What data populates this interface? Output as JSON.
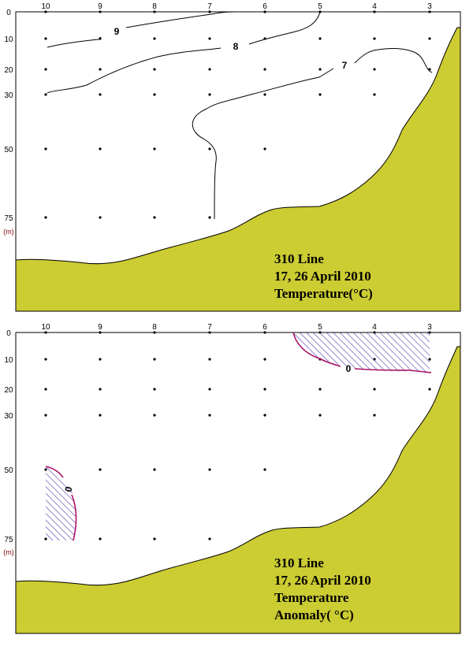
{
  "colors": {
    "land": "#cccc33",
    "hatch": "#5533aa",
    "anomaly_line": "#aa1166",
    "contour": "#000000",
    "frame": "#000000"
  },
  "chart_data": [
    {
      "type": "contour",
      "title_lines": [
        "310 Line",
        "17, 26 April 2010",
        "Temperature(°C)"
      ],
      "x_ticks": [
        "10",
        "9",
        "8",
        "7",
        "6",
        "5",
        "4",
        "3"
      ],
      "y_ticks": [
        "0",
        "10",
        "20",
        "30",
        "50",
        "75"
      ],
      "y_unit": "(m)",
      "contour_labels": [
        "9",
        "8",
        "7"
      ]
    },
    {
      "type": "contour",
      "title_lines": [
        "310 Line",
        "17, 26 April 2010",
        "Temperature",
        "Anomaly( °C)"
      ],
      "x_ticks": [
        "10",
        "9",
        "8",
        "7",
        "6",
        "5",
        "4",
        "3"
      ],
      "y_ticks": [
        "0",
        "10",
        "20",
        "30",
        "50",
        "75"
      ],
      "y_unit": "(m)",
      "contour_labels": [
        "0",
        "0"
      ]
    }
  ]
}
